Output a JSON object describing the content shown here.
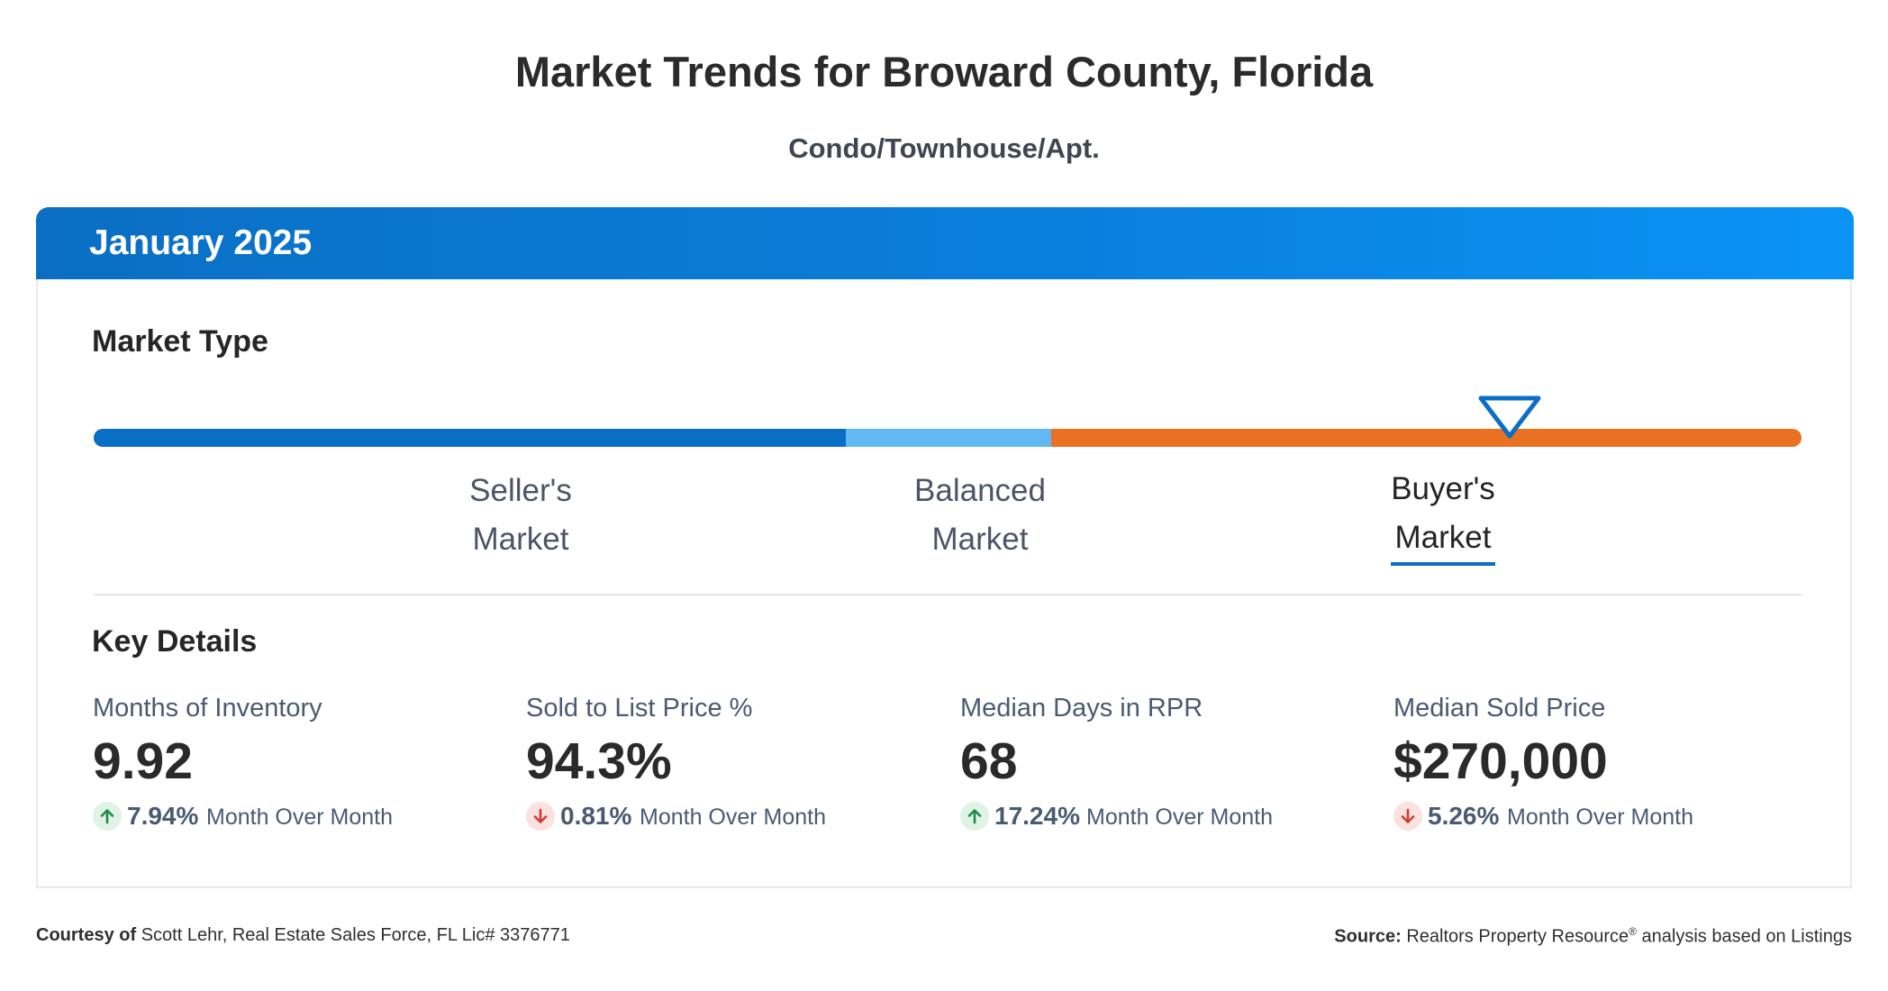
{
  "header": {
    "title": "Market Trends for Broward County, Florida",
    "subtitle": "Condo/Townhouse/Apt."
  },
  "card": {
    "period": "January 2025",
    "market_type": {
      "heading": "Market Type",
      "segments": [
        {
          "line1": "Seller's",
          "line2": "Market",
          "color": "#0a6fc4"
        },
        {
          "line1": "Balanced",
          "line2": "Market",
          "color": "#62b8f3"
        },
        {
          "line1": "Buyer's",
          "line2": "Market",
          "color": "#ea7123"
        }
      ],
      "active": "Buyer's Market"
    },
    "key_details": {
      "heading": "Key Details",
      "metrics": [
        {
          "label": "Months of Inventory",
          "value": "9.92",
          "change": "7.94%",
          "direction": "up",
          "change_label": "Month Over Month"
        },
        {
          "label": "Sold to List Price %",
          "value": "94.3%",
          "change": "0.81%",
          "direction": "down",
          "change_label": "Month Over Month"
        },
        {
          "label": "Median Days in RPR",
          "value": "68",
          "change": "17.24%",
          "direction": "up",
          "change_label": "Month Over Month"
        },
        {
          "label": "Median Sold Price",
          "value": "$270,000",
          "change": "5.26%",
          "direction": "down",
          "change_label": "Month Over Month"
        }
      ]
    }
  },
  "footer": {
    "courtesy_label": "Courtesy of",
    "courtesy_text": "Scott Lehr, Real Estate Sales Force, FL Lic# 3376771",
    "source_label": "Source:",
    "source_text_a": "Realtors Property Resource",
    "source_reg": "®",
    "source_text_b": " analysis based on Listings"
  },
  "colors": {
    "up_arrow": "#1f8a4c",
    "down_arrow": "#d43b2f",
    "accent": "#0a6fc4"
  }
}
